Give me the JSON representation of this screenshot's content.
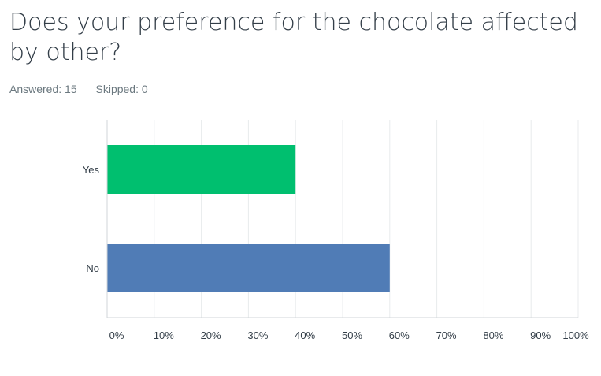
{
  "question": {
    "title": "Does your preference for the chocolate affected by other?"
  },
  "stats": {
    "answered_label": "Answered: 15",
    "skipped_label": "Skipped: 0"
  },
  "chart_data": {
    "type": "bar",
    "orientation": "horizontal",
    "categories": [
      "Yes",
      "No"
    ],
    "values": [
      40,
      60
    ],
    "unit": "%",
    "xlim": [
      0,
      100
    ],
    "xticks": [
      "0%",
      "10%",
      "20%",
      "30%",
      "40%",
      "50%",
      "60%",
      "70%",
      "80%",
      "90%",
      "100%"
    ],
    "grid": true,
    "colors": [
      "#00bf6f",
      "#507cb6"
    ]
  }
}
